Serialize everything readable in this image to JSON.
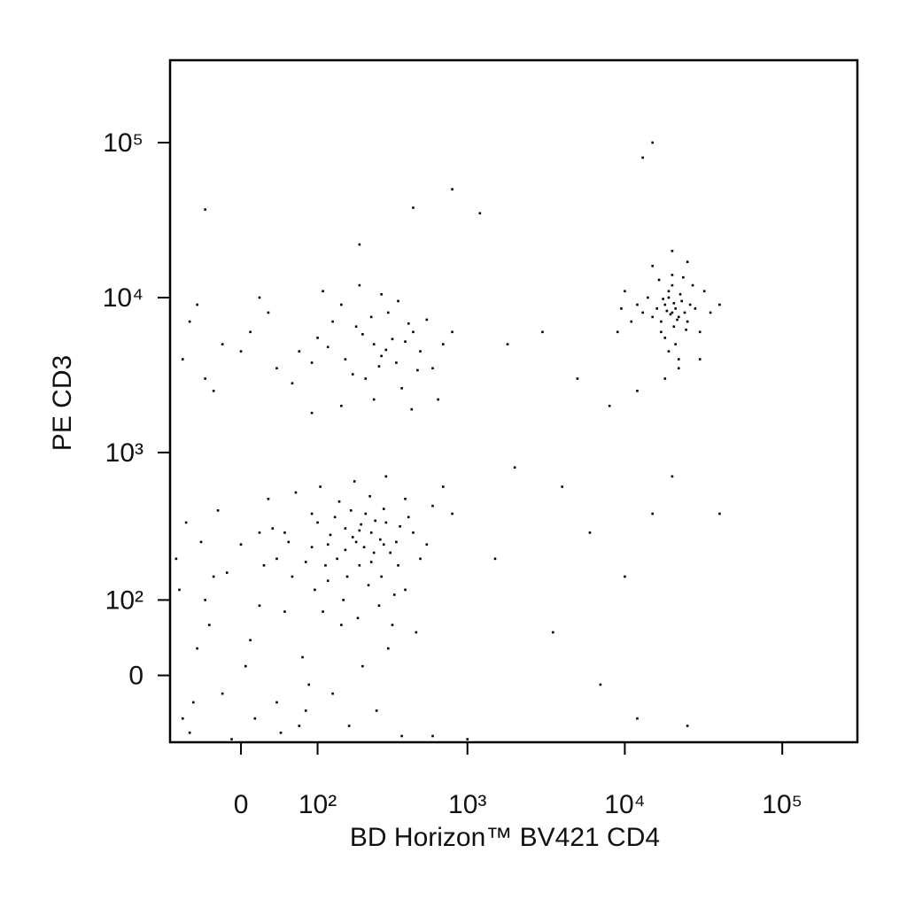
{
  "chart_data": {
    "type": "scatter",
    "x_label": "BD Horizon™ BV421 CD4",
    "y_label": "PE CD3",
    "xscale": "biexponential",
    "yscale": "biexponential",
    "color": "#000000",
    "xlim": [
      -90,
      300000
    ],
    "ylim": [
      -85,
      340000
    ],
    "xticks": [
      0,
      {
        "value": 100,
        "label": "10²"
      },
      {
        "value": 1000,
        "label": "10³"
      },
      {
        "value": 10000,
        "label": "10⁴"
      },
      {
        "value": 100000,
        "label": "10⁵"
      }
    ],
    "yticks": [
      0,
      {
        "value": 100,
        "label": "10²"
      },
      {
        "value": 1000,
        "label": "10³"
      },
      {
        "value": 10000,
        "label": "10⁴"
      },
      {
        "value": 100000,
        "label": "10⁵"
      }
    ],
    "x": [
      -60,
      -30,
      10,
      50,
      120,
      200,
      300,
      400,
      80,
      150,
      -80,
      -20,
      30,
      90,
      180,
      250,
      350,
      450,
      600,
      20,
      -50,
      0,
      60,
      110,
      160,
      220,
      280,
      330,
      500,
      70,
      -70,
      -40,
      40,
      100,
      140,
      190,
      240,
      320,
      420,
      550,
      -10,
      15,
      45,
      75,
      130,
      170,
      210,
      260,
      310,
      380,
      -75,
      -35,
      25,
      55,
      95,
      125,
      165,
      205,
      275,
      360,
      -65,
      -25,
      35,
      65,
      105,
      145,
      185,
      235,
      290,
      400,
      -55,
      5,
      85,
      115,
      155,
      195,
      230,
      270,
      340,
      470,
      -45,
      20,
      50,
      90,
      135,
      175,
      215,
      255,
      300,
      700,
      -15,
      40,
      80,
      120,
      160,
      200,
      240,
      290,
      370,
      800,
      -70,
      -40,
      -20,
      10,
      40,
      70,
      100,
      130,
      160,
      190,
      220,
      250,
      280,
      310,
      350,
      400,
      450,
      500,
      600,
      700,
      -60,
      -30,
      0,
      30,
      60,
      90,
      120,
      150,
      180,
      210,
      240,
      270,
      300,
      330,
      380,
      420,
      480,
      550,
      650,
      800,
      -50,
      20,
      110,
      200,
      280,
      360,
      150,
      250,
      90,
      440,
      20000,
      18000,
      22000,
      19000,
      21000,
      17000,
      23000,
      20500,
      16000,
      24000,
      19500,
      20500,
      18500,
      21500,
      19000,
      22500,
      17500,
      25000,
      15000,
      26000,
      20000,
      18000,
      21000,
      14000,
      28000,
      13000,
      30000,
      12000,
      32000,
      20000,
      16500,
      23500,
      19000,
      22000,
      11000,
      35000,
      10000,
      27000,
      17000,
      24500,
      20000,
      25000,
      15000,
      40000,
      9000,
      30000,
      18000,
      12000,
      22000,
      9500,
      15000,
      13000,
      800,
      1200,
      -40,
      450,
      200,
      1800,
      3000,
      5000,
      8000,
      2000,
      4000,
      6000,
      10000,
      15000,
      20000,
      40000,
      1500,
      3500,
      7000,
      12000,
      25000,
      1000,
      600
    ],
    "values": [
      -70,
      150,
      40,
      300,
      250,
      180,
      350,
      120,
      -40,
      60,
      200,
      -20,
      500,
      400,
      280,
      220,
      260,
      300,
      450,
      90,
      30,
      250,
      150,
      80,
      320,
      400,
      150,
      60,
      200,
      -60,
      -50,
      100,
      200,
      350,
      200,
      260,
      300,
      220,
      380,
      250,
      -80,
      -50,
      -70,
      20,
      -20,
      -60,
      10,
      -40,
      30,
      -75,
      120,
      60,
      180,
      260,
      120,
      290,
      150,
      340,
      270,
      180,
      350,
      420,
      320,
      550,
      600,
      480,
      650,
      520,
      430,
      500,
      -30,
      10,
      -10,
      180,
      100,
      70,
      130,
      90,
      110,
      50,
      260,
      300,
      80,
      240,
      380,
      420,
      240,
      360,
      700,
      600,
      160,
      -30,
      190,
      140,
      230,
      310,
      190,
      250,
      330,
      400,
      4000,
      3000,
      5000,
      6000,
      3500,
      4500,
      5500,
      7000,
      4000,
      6500,
      3000,
      5000,
      4200,
      8000,
      3800,
      5200,
      6000,
      4500,
      3500,
      5000,
      7000,
      2500,
      4500,
      8000,
      2800,
      3800,
      4800,
      9000,
      3200,
      5800,
      7500,
      3600,
      4600,
      5400,
      2600,
      6800,
      3400,
      7200,
      2200,
      6000,
      9000,
      10000,
      11000,
      12000,
      10500,
      9500,
      2000,
      2200,
      1800,
      1900,
      8000,
      9000,
      7500,
      10000,
      8500,
      7000,
      9500,
      6500,
      8500,
      8000,
      7800,
      9200,
      8200,
      7200,
      11000,
      10500,
      9800,
      7000,
      7500,
      9000,
      12000,
      5500,
      5000,
      10000,
      8500,
      8000,
      6000,
      9000,
      11000,
      14000,
      13000,
      13500,
      4500,
      4000,
      7000,
      8000,
      11000,
      12000,
      6000,
      6200,
      20000,
      17000,
      16000,
      9000,
      6000,
      4000,
      3000,
      2500,
      3500,
      8500,
      100000,
      80000,
      50000,
      35000,
      37000,
      38000,
      22000,
      5000,
      6000,
      3000,
      2000,
      800,
      600,
      300,
      150,
      400,
      700,
      400,
      200,
      50,
      -10,
      -50,
      -60,
      -80,
      -75
    ]
  }
}
